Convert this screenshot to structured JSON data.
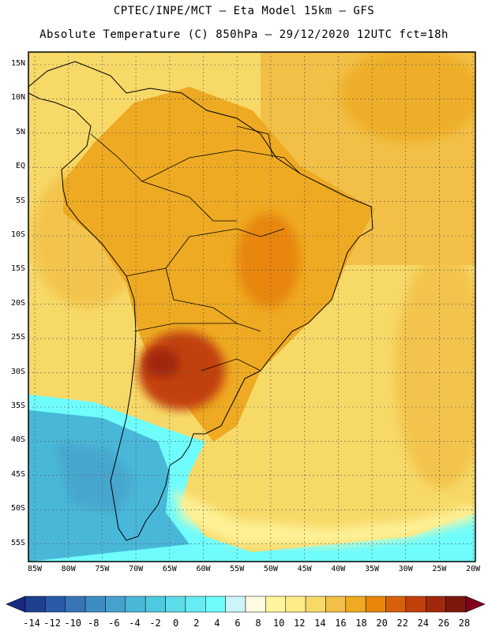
{
  "header": {
    "line1": "CPTEC/INPE/MCT –  Eta Model 15km – GFS",
    "line2": "Absolute Temperature (C) 850hPa – 29/12/2020 12UTC fct=18h"
  },
  "map": {
    "lat_labels": [
      "15N",
      "10N",
      "5N",
      "EQ",
      "5S",
      "10S",
      "15S",
      "20S",
      "25S",
      "30S",
      "35S",
      "40S",
      "45S",
      "50S",
      "55S"
    ],
    "lon_labels": [
      "85W",
      "80W",
      "75W",
      "70W",
      "65W",
      "60W",
      "55W",
      "50W",
      "45W",
      "40W",
      "35W",
      "30W",
      "25W",
      "20W"
    ],
    "grid": "dashed",
    "domain": "South America"
  },
  "colorbar": {
    "labels": [
      "-14",
      "-12",
      "-10",
      "-8",
      "-6",
      "-4",
      "-2",
      "0",
      "2",
      "4",
      "6",
      "8",
      "10",
      "12",
      "14",
      "16",
      "18",
      "20",
      "22",
      "24",
      "26",
      "28"
    ],
    "colors": [
      "#1f3f8f",
      "#2a5aa8",
      "#3874b8",
      "#3f8cc4",
      "#46a2cc",
      "#49b8d8",
      "#4ccbe0",
      "#5cdce8",
      "#66ecf2",
      "#6ffcfc",
      "#cdf4f6",
      "#fffbe1",
      "#fff59e",
      "#fceb86",
      "#f7d968",
      "#f2c047",
      "#eeaa22",
      "#e8860c",
      "#d8600c",
      "#c2400c",
      "#a0280c",
      "#7c180c"
    ],
    "under_color": "#1a2a80",
    "over_color": "#800020"
  }
}
